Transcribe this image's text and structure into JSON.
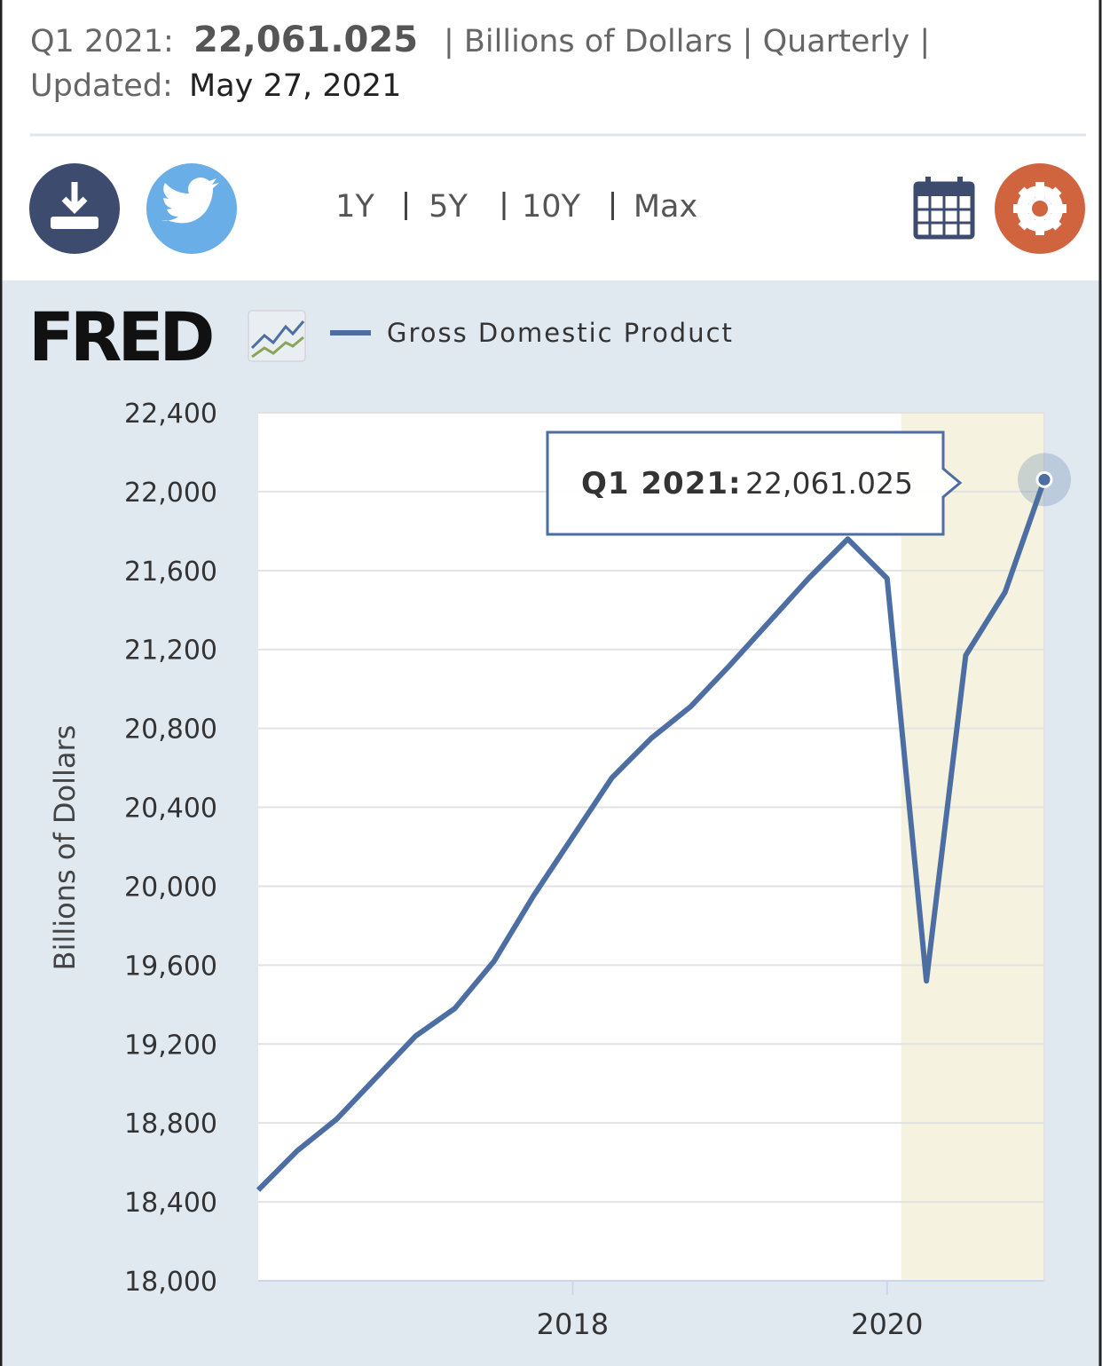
{
  "header": {
    "period": "Q1 2021:",
    "value": "22,061.025",
    "units": "| Billions of Dollars | Quarterly |",
    "updated_label": "Updated:",
    "updated": "May 27, 2021"
  },
  "ranges": [
    "1Y",
    "5Y",
    "10Y",
    "Max"
  ],
  "logo": "FRED",
  "chart_data": {
    "type": "line",
    "ylabel": "Billions of Dollars",
    "x": [
      2016,
      2016.25,
      2016.5,
      2016.75,
      2017,
      2017.25,
      2017.5,
      2017.75,
      2018,
      2018.25,
      2018.5,
      2018.75,
      2019,
      2019.25,
      2019.5,
      2019.75,
      2020,
      2020.25,
      2020.5,
      2020.75,
      2021
    ],
    "series": [
      {
        "name": "Gross Domestic Product",
        "color": "#4c6ea3",
        "values": [
          18460,
          18660,
          18820,
          19030,
          19240,
          19380,
          19620,
          19950,
          20250,
          20550,
          20750,
          20910,
          21120,
          21340,
          21560,
          21760,
          21560,
          19520,
          21170,
          21490,
          22061.025
        ]
      }
    ],
    "xlim": [
      2016,
      2021
    ],
    "xticks": [
      2018,
      2020
    ],
    "ylim": [
      18000,
      22400
    ],
    "yticks": [
      {
        "value": 18000,
        "label": "18,000"
      },
      {
        "value": 18400,
        "label": "18,400"
      },
      {
        "value": 18800,
        "label": "18,800"
      },
      {
        "value": 19200,
        "label": "19,200"
      },
      {
        "value": 19600,
        "label": "19,600"
      },
      {
        "value": 20000,
        "label": "20,000"
      },
      {
        "value": 20400,
        "label": "20,400"
      },
      {
        "value": 20800,
        "label": "20,800"
      },
      {
        "value": 21200,
        "label": "21,200"
      },
      {
        "value": 21600,
        "label": "21,600"
      },
      {
        "value": 22000,
        "label": "22,000"
      },
      {
        "value": 22400,
        "label": "22,400"
      }
    ],
    "grid": true,
    "recession": [
      2020.09,
      2021
    ],
    "tooltip": {
      "label": "Q1 2021:",
      "value": "22,061.025"
    }
  }
}
